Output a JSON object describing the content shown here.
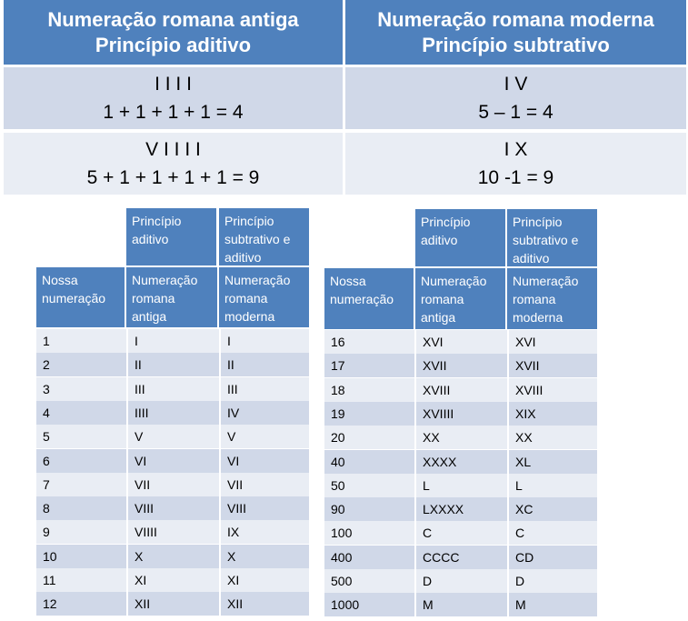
{
  "top_table": {
    "left_header": [
      "Numeração romana antiga",
      "Princípio aditivo"
    ],
    "right_header": [
      "Numeração romana moderna",
      "Princípio subtrativo"
    ],
    "rows": [
      {
        "left": [
          "I  I  I  I",
          "1 + 1 + 1 + 1 = 4"
        ],
        "right": [
          "I V",
          "5 – 1 = 4"
        ]
      },
      {
        "left": [
          "V  I  I  I  I",
          "5 + 1 + 1 + 1 + 1 = 9"
        ],
        "right": [
          "I X",
          "10 -1 = 9"
        ]
      }
    ]
  },
  "left_table": {
    "group_headers": [
      "Princípio aditivo",
      "Princípio subtrativo e aditivo"
    ],
    "column_headers": [
      "Nossa numeração",
      "Numeração romana antiga",
      "Numeração romana moderna"
    ],
    "rows": [
      [
        "1",
        "I",
        "I"
      ],
      [
        "2",
        "II",
        "II"
      ],
      [
        "3",
        "III",
        "III"
      ],
      [
        "4",
        "IIII",
        "IV"
      ],
      [
        "5",
        "V",
        "V"
      ],
      [
        "6",
        "VI",
        "VI"
      ],
      [
        "7",
        "VII",
        "VII"
      ],
      [
        "8",
        "VIII",
        "VIII"
      ],
      [
        "9",
        "VIIII",
        "IX"
      ],
      [
        "10",
        "X",
        "X"
      ],
      [
        "11",
        "XI",
        "XI"
      ],
      [
        "12",
        "XII",
        "XII"
      ]
    ]
  },
  "right_table": {
    "group_headers": [
      "Princípio aditivo",
      "Princípio subtrativo e aditivo"
    ],
    "column_headers": [
      "Nossa numeração",
      "Numeração romana antiga",
      "Numeração romana moderna"
    ],
    "rows": [
      [
        "16",
        "XVI",
        "XVI"
      ],
      [
        "17",
        "XVII",
        "XVII"
      ],
      [
        "18",
        "XVIII",
        "XVIII"
      ],
      [
        "19",
        "XVIIII",
        "XIX"
      ],
      [
        "20",
        "XX",
        "XX"
      ],
      [
        "40",
        "XXXX",
        "XL"
      ],
      [
        "50",
        "L",
        "L"
      ],
      [
        "90",
        "LXXXX",
        "XC"
      ],
      [
        "100",
        "C",
        "C"
      ],
      [
        "400",
        "CCCC",
        "CD"
      ],
      [
        "500",
        "D",
        "D"
      ],
      [
        "1000",
        "M",
        "M"
      ]
    ]
  },
  "colors": {
    "header_blue": "#4f81bd",
    "row_dark": "#d0d8e8",
    "row_light": "#e9edf4"
  }
}
